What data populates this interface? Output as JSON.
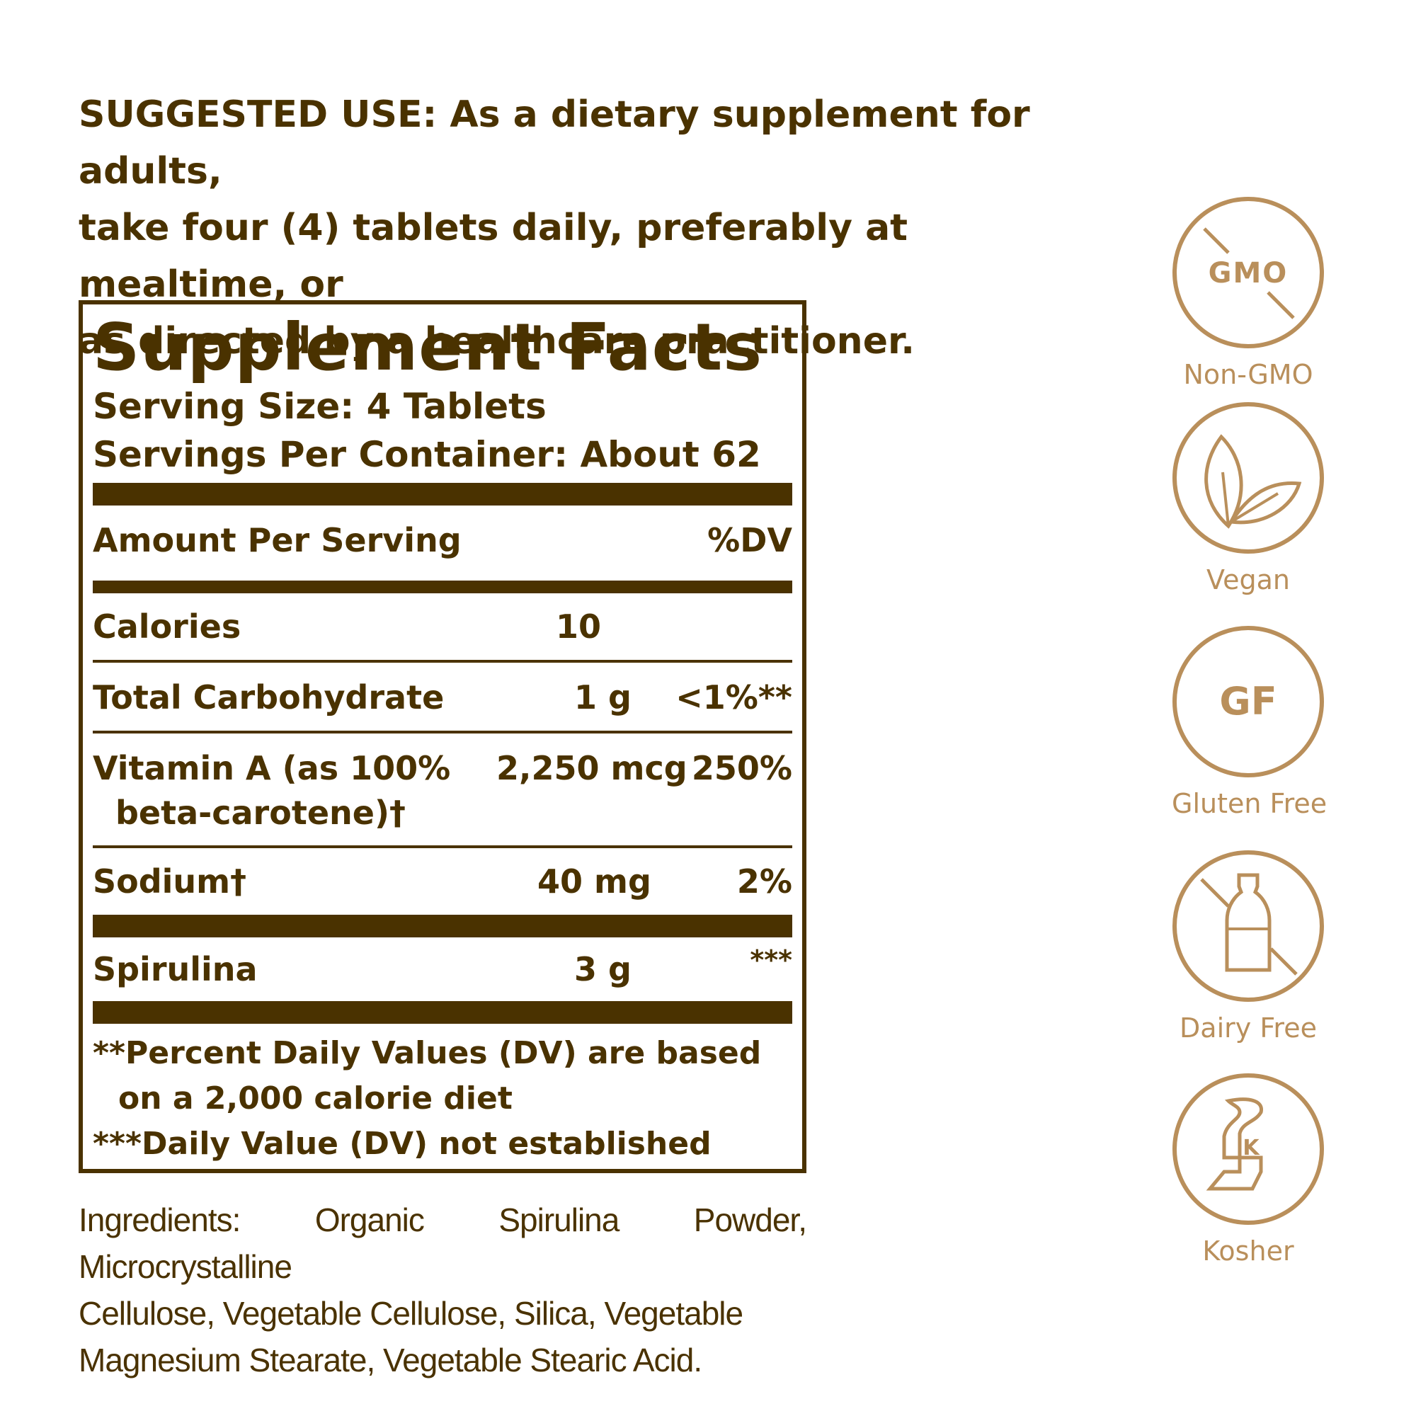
{
  "suggested_use": {
    "line1": "SUGGESTED USE: As a dietary supplement for adults,",
    "line2": "take four (4) tablets daily, preferably at mealtime, or",
    "line3": "as directed by a healthcare practitioner."
  },
  "supplement_facts": {
    "title": "Supplement Facts",
    "serving_size": "Serving Size: 4 Tablets",
    "servings_per_container": "Servings Per Container: About 62",
    "header_amount": "Amount Per Serving",
    "header_dv": "%DV",
    "rows": [
      {
        "name": "Calories",
        "amount": "10",
        "dv": ""
      },
      {
        "name": "Total Carbohydrate",
        "amount": "1 g",
        "dv": "<1%**"
      },
      {
        "name": "Vitamin A (as 100%",
        "name2": "beta-carotene)†",
        "amount": "2,250 mcg",
        "dv": "250%"
      },
      {
        "name": "Sodium†",
        "amount": "40 mg",
        "dv": "2%"
      },
      {
        "name": "Spirulina",
        "amount": "3 g",
        "dv": "***"
      }
    ],
    "footnote1a": "**Percent Daily Values (DV) are based",
    "footnote1b": "on a 2,000 calorie diet",
    "footnote2": "***Daily Value (DV) not established"
  },
  "ingredients": {
    "line1": "Ingredients: Organic Spirulina Powder, Microcrystalline",
    "line2": "Cellulose, Vegetable Cellulose, Silica, Vegetable",
    "line3": "Magnesium Stearate, Vegetable Stearic Acid."
  },
  "badges": [
    {
      "icon": "gmo-crossed-icon",
      "icon_text": "GMO",
      "label": "Non-GMO"
    },
    {
      "icon": "leaves-icon",
      "label": "Vegan"
    },
    {
      "icon": "gf-icon",
      "icon_text": "GF",
      "label": "Gluten Free"
    },
    {
      "icon": "milk-bottle-crossed-icon",
      "label": "Dairy Free"
    },
    {
      "icon": "kosher-icon",
      "icon_text": "K",
      "label": "Kosher"
    }
  ],
  "colors": {
    "text": "#4a3200",
    "badge": "#b98f5b"
  }
}
